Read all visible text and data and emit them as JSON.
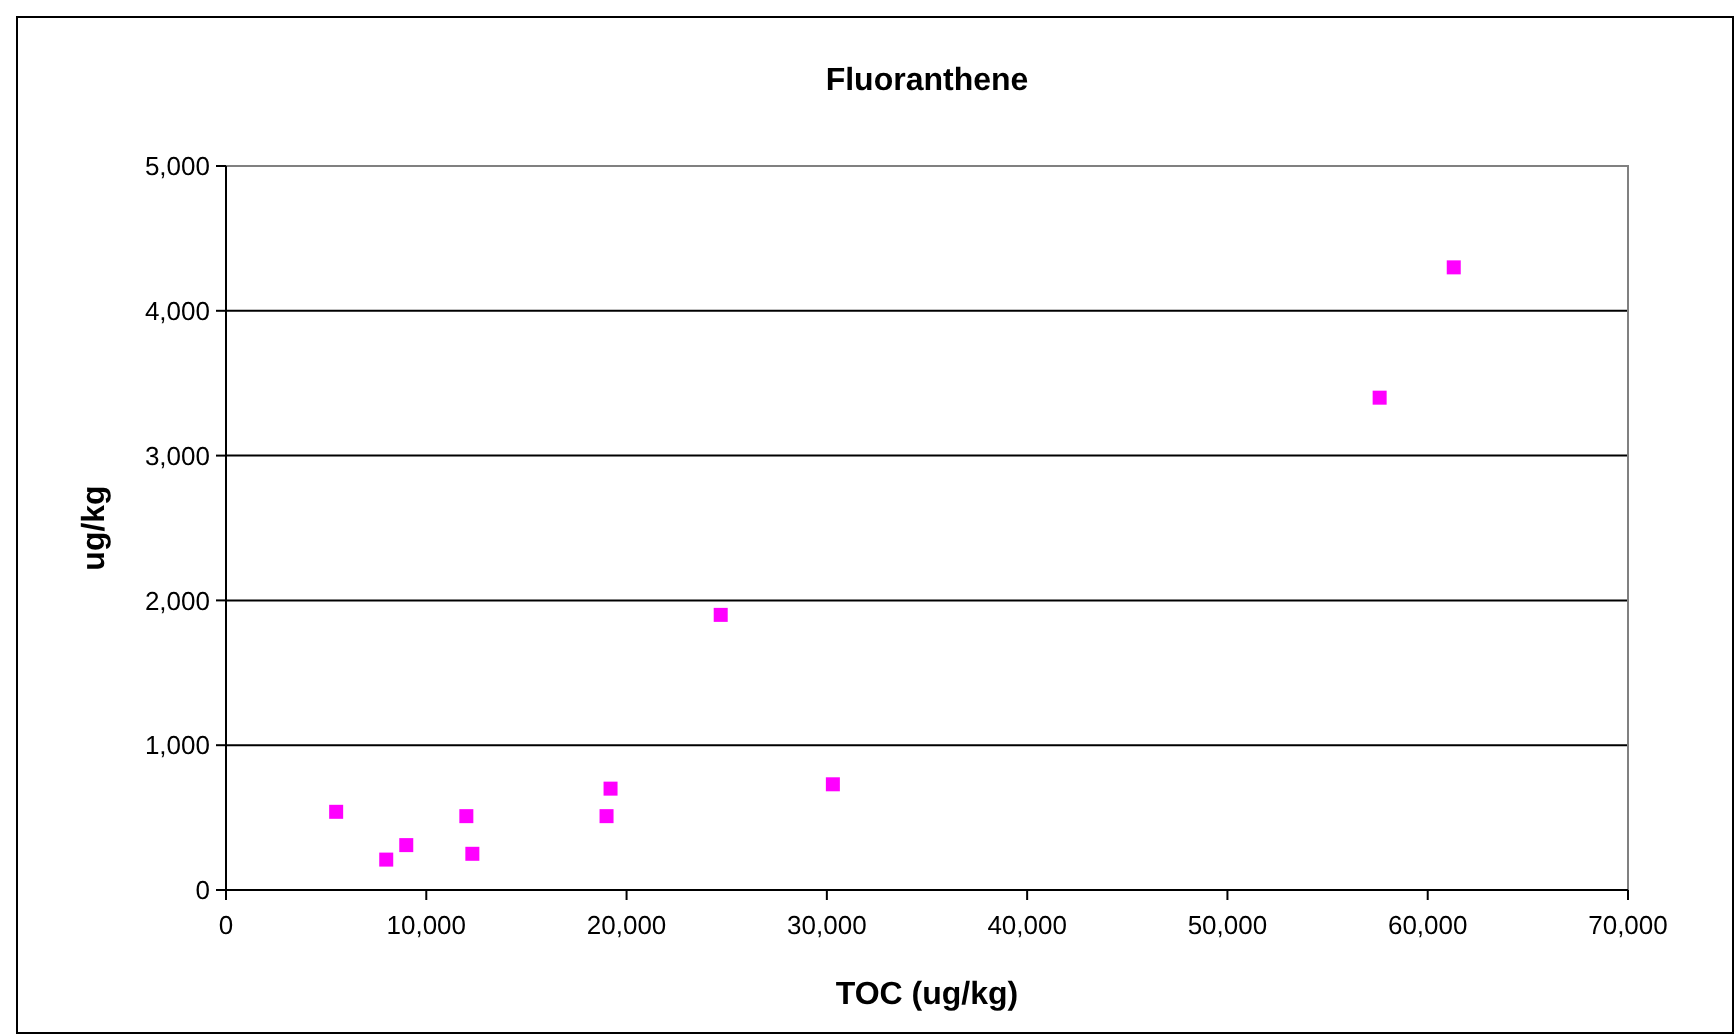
{
  "chart_data": {
    "type": "scatter",
    "title": "Fluoranthene",
    "xlabel": "TOC (ug/kg)",
    "ylabel": "ug/kg",
    "x": [
      5500,
      8000,
      9000,
      12000,
      12300,
      19000,
      19200,
      24700,
      30300,
      57600,
      61300
    ],
    "series": [
      {
        "color": "#ff00ff",
        "values": [
          540,
          210,
          310,
          510,
          250,
          510,
          700,
          1900,
          730,
          3400,
          4300
        ]
      }
    ],
    "xlim": [
      0,
      70000
    ],
    "xticks": [
      {
        "value": 0,
        "label": "0"
      },
      {
        "value": 10000,
        "label": "10,000"
      },
      {
        "value": 20000,
        "label": "20,000"
      },
      {
        "value": 30000,
        "label": "30,000"
      },
      {
        "value": 40000,
        "label": "40,000"
      },
      {
        "value": 50000,
        "label": "50,000"
      },
      {
        "value": 60000,
        "label": "60,000"
      },
      {
        "value": 70000,
        "label": "70,000"
      }
    ],
    "ylim": [
      0,
      5000
    ],
    "yticks": [
      {
        "value": 0,
        "label": "0"
      },
      {
        "value": 1000,
        "label": "1,000"
      },
      {
        "value": 2000,
        "label": "2,000"
      },
      {
        "value": 3000,
        "label": "3,000"
      },
      {
        "value": 4000,
        "label": "4,000"
      },
      {
        "value": 5000,
        "label": "5,000"
      }
    ],
    "grid": "y",
    "marker": "square"
  }
}
